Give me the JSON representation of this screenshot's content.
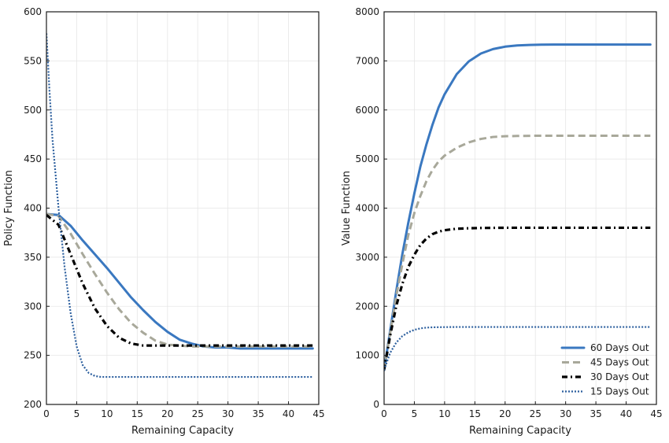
{
  "chart_data": [
    {
      "type": "line",
      "title": "",
      "xlabel": "Remaining Capacity",
      "ylabel": "Policy Function",
      "xlim": [
        0,
        45
      ],
      "ylim": [
        200,
        600
      ],
      "xticks": [
        0,
        5,
        10,
        15,
        20,
        25,
        30,
        35,
        40,
        45
      ],
      "yticks": [
        200,
        250,
        300,
        350,
        400,
        450,
        500,
        550,
        600
      ],
      "grid": true,
      "legend": "none",
      "series": [
        {
          "key": "60",
          "x": [
            0,
            2,
            4,
            6,
            8,
            10,
            12,
            14,
            16,
            18,
            20,
            22,
            24,
            26,
            28,
            30,
            32,
            34,
            36,
            38,
            40,
            42,
            44
          ],
          "y": [
            394,
            393,
            382,
            367,
            353,
            339,
            324,
            309,
            296,
            284,
            274,
            266,
            262,
            259,
            258,
            258,
            257,
            257,
            257,
            257,
            257,
            257,
            257
          ]
        },
        {
          "key": "45",
          "x": [
            0,
            2,
            4,
            6,
            8,
            10,
            12,
            14,
            16,
            18,
            20,
            22,
            24,
            26,
            28,
            30,
            32,
            34,
            36,
            38,
            40,
            42,
            44
          ],
          "y": [
            394,
            392,
            374,
            353,
            333,
            314,
            297,
            283,
            273,
            265,
            261,
            260,
            259,
            259,
            259,
            259,
            259,
            259,
            259,
            259,
            259,
            259,
            259
          ]
        },
        {
          "key": "30",
          "x": [
            0,
            2,
            4,
            6,
            8,
            10,
            12,
            14,
            16,
            18,
            20,
            22,
            24,
            26,
            28,
            30,
            32,
            34,
            36,
            38,
            40,
            42,
            44
          ],
          "y": [
            393,
            383,
            353,
            323,
            298,
            280,
            268,
            262,
            260,
            260,
            260,
            260,
            260,
            260,
            260,
            260,
            260,
            260,
            260,
            260,
            260,
            260,
            260
          ]
        },
        {
          "key": "15",
          "x": [
            0,
            0.5,
            1,
            2,
            3,
            4,
            5,
            6,
            7,
            8,
            9,
            10,
            12,
            14,
            20,
            30,
            44
          ],
          "y": [
            578,
            520,
            470,
            400,
            340,
            293,
            259,
            240,
            232,
            229,
            228,
            228,
            228,
            228,
            228,
            228,
            228
          ]
        }
      ]
    },
    {
      "type": "line",
      "title": "",
      "xlabel": "Remaining Capacity",
      "ylabel": "Value Function",
      "xlim": [
        0,
        45
      ],
      "ylim": [
        0,
        8000
      ],
      "xticks": [
        0,
        5,
        10,
        15,
        20,
        25,
        30,
        35,
        40,
        45
      ],
      "yticks": [
        0,
        1000,
        2000,
        3000,
        4000,
        5000,
        6000,
        7000,
        8000
      ],
      "grid": true,
      "legend": "bottom-right",
      "series": [
        {
          "key": "60",
          "name": "60 Days Out",
          "x": [
            0,
            1,
            2,
            3,
            4,
            5,
            6,
            7,
            8,
            9,
            10,
            12,
            14,
            16,
            18,
            20,
            22,
            24,
            26,
            28,
            30,
            35,
            40,
            44
          ],
          "y": [
            700,
            1500,
            2300,
            3050,
            3700,
            4300,
            4850,
            5300,
            5700,
            6050,
            6320,
            6730,
            6990,
            7150,
            7240,
            7290,
            7315,
            7325,
            7330,
            7332,
            7333,
            7333,
            7333,
            7333
          ]
        },
        {
          "key": "45",
          "name": "45 Days Out",
          "x": [
            0,
            1,
            2,
            3,
            4,
            5,
            6,
            7,
            8,
            9,
            10,
            12,
            14,
            16,
            18,
            20,
            22,
            25,
            30,
            35,
            40,
            44
          ],
          "y": [
            700,
            1450,
            2200,
            2850,
            3450,
            3900,
            4250,
            4550,
            4780,
            4950,
            5070,
            5230,
            5340,
            5410,
            5450,
            5465,
            5470,
            5475,
            5475,
            5475,
            5475,
            5475
          ]
        },
        {
          "key": "30",
          "name": "30 Days Out",
          "x": [
            0,
            1,
            2,
            3,
            4,
            5,
            6,
            7,
            8,
            9,
            10,
            12,
            14,
            16,
            18,
            20,
            25,
            30,
            35,
            40,
            44
          ],
          "y": [
            700,
            1400,
            2000,
            2450,
            2800,
            3050,
            3250,
            3380,
            3470,
            3520,
            3550,
            3580,
            3590,
            3595,
            3598,
            3600,
            3600,
            3600,
            3600,
            3600,
            3600
          ]
        },
        {
          "key": "15",
          "name": "15 Days Out",
          "x": [
            0,
            1,
            2,
            3,
            4,
            5,
            6,
            7,
            8,
            10,
            12,
            15,
            20,
            30,
            44
          ],
          "y": [
            700,
            1050,
            1260,
            1390,
            1470,
            1520,
            1550,
            1565,
            1572,
            1576,
            1578,
            1578,
            1578,
            1578,
            1578
          ]
        }
      ]
    }
  ],
  "styles": {
    "60": {
      "color": "#3a78c0",
      "dash": "",
      "width": 3.0,
      "cap": "round"
    },
    "45": {
      "color": "#a8a89a",
      "dash": "9 5",
      "width": 3.0,
      "cap": "butt"
    },
    "30": {
      "color": "#000000",
      "dash": "7 4 2 4",
      "width": 3.2,
      "cap": "butt"
    },
    "15": {
      "color": "#2c5f9e",
      "dash": "2 2",
      "width": 2.2,
      "cap": "butt"
    }
  }
}
